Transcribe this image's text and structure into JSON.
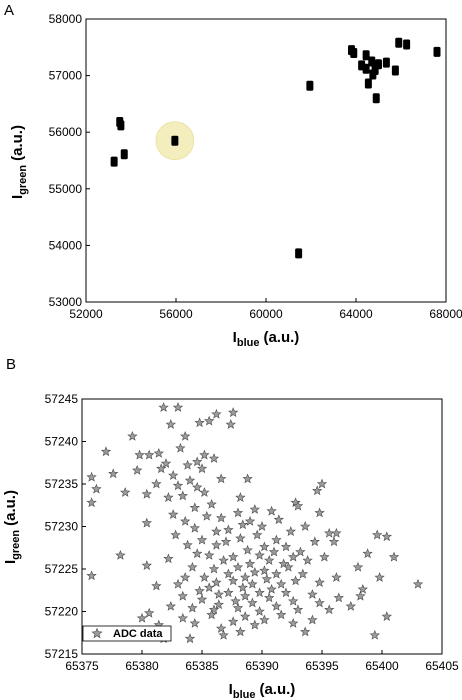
{
  "panels": {
    "a": {
      "label": "A"
    },
    "b": {
      "label": "B"
    }
  },
  "chart_data": [
    {
      "type": "scatter",
      "panel": "A",
      "xlabel_main": "I",
      "xlabel_sub": "blue",
      "xlabel_unit": "(a.u.)",
      "ylabel_main": "I",
      "ylabel_sub": "green",
      "ylabel_unit": "(a.u.)",
      "xlim": [
        52000,
        68000
      ],
      "ylim": [
        53000,
        58000
      ],
      "xticks": [
        "52000",
        "56000",
        "60000",
        "64000",
        "68000"
      ],
      "yticks": [
        "53000",
        "54000",
        "55000",
        "56000",
        "57000",
        "58000"
      ],
      "highlight_color": "#f4eebf",
      "marker_color": "#000000",
      "highlight_point": {
        "x": 55950,
        "y": 55850
      },
      "points": [
        {
          "x": 53250,
          "y": 55480
        },
        {
          "x": 53500,
          "y": 56180
        },
        {
          "x": 53550,
          "y": 56120
        },
        {
          "x": 53700,
          "y": 55610
        },
        {
          "x": 55950,
          "y": 55850
        },
        {
          "x": 61450,
          "y": 53860
        },
        {
          "x": 61950,
          "y": 56820
        },
        {
          "x": 63800,
          "y": 57450
        },
        {
          "x": 63900,
          "y": 57400
        },
        {
          "x": 64250,
          "y": 57180
        },
        {
          "x": 64450,
          "y": 57360
        },
        {
          "x": 64450,
          "y": 57120
        },
        {
          "x": 64550,
          "y": 56860
        },
        {
          "x": 64700,
          "y": 57250
        },
        {
          "x": 64750,
          "y": 57020
        },
        {
          "x": 64850,
          "y": 57100
        },
        {
          "x": 64900,
          "y": 56600
        },
        {
          "x": 65000,
          "y": 57200
        },
        {
          "x": 65350,
          "y": 57230
        },
        {
          "x": 65750,
          "y": 57090
        },
        {
          "x": 65900,
          "y": 57580
        },
        {
          "x": 66250,
          "y": 57550
        },
        {
          "x": 67600,
          "y": 57420
        }
      ]
    },
    {
      "type": "scatter",
      "panel": "B",
      "xlabel_main": "I",
      "xlabel_sub": "blue",
      "xlabel_unit": "(a.u.)",
      "ylabel_main": "I",
      "ylabel_sub": "green",
      "ylabel_unit": "(a.u.)",
      "xlim": [
        65375,
        65405
      ],
      "ylim": [
        57215,
        57245
      ],
      "xticks": [
        "65375",
        "65380",
        "65385",
        "65390",
        "65395",
        "65400",
        "65405"
      ],
      "yticks": [
        "57215",
        "57220",
        "57225",
        "57230",
        "57235",
        "57240",
        "57245"
      ],
      "marker": "star",
      "marker_color": "#9c9c9c",
      "legend": [
        "ADC data"
      ],
      "legend_position": "bottom-left",
      "points": [
        [
          65381.8,
          57244.0
        ],
        [
          65383.0,
          57244.0
        ],
        [
          65387.6,
          57243.4
        ],
        [
          65386.2,
          57243.2
        ],
        [
          65385.6,
          57242.4
        ],
        [
          65384.8,
          57242.2
        ],
        [
          65387.4,
          57242.0
        ],
        [
          65382.4,
          57242.0
        ],
        [
          65379.2,
          57240.6
        ],
        [
          65383.6,
          57240.6
        ],
        [
          65383.2,
          57239.2
        ],
        [
          65377.0,
          57238.8
        ],
        [
          65381.4,
          57238.6
        ],
        [
          65380.6,
          57238.4
        ],
        [
          65379.8,
          57238.4
        ],
        [
          65385.2,
          57238.4
        ],
        [
          65386.0,
          57238.0
        ],
        [
          65384.6,
          57237.6
        ],
        [
          65382.0,
          57237.4
        ],
        [
          65383.8,
          57237.2
        ],
        [
          65381.6,
          57236.8
        ],
        [
          65385.0,
          57236.8
        ],
        [
          65379.6,
          57236.6
        ],
        [
          65377.6,
          57236.2
        ],
        [
          65382.6,
          57236.0
        ],
        [
          65375.8,
          57235.8
        ],
        [
          65386.6,
          57235.6
        ],
        [
          65384.0,
          57235.4
        ],
        [
          65388.8,
          57235.6
        ],
        [
          65395.0,
          57235.0
        ],
        [
          65381.2,
          57235.0
        ],
        [
          65383.0,
          57234.8
        ],
        [
          65384.6,
          57234.6
        ],
        [
          65376.2,
          57234.4
        ],
        [
          65394.6,
          57234.2
        ],
        [
          65378.6,
          57234.0
        ],
        [
          65385.2,
          57234.0
        ],
        [
          65380.4,
          57233.8
        ],
        [
          65383.4,
          57233.6
        ],
        [
          65382.2,
          57233.4
        ],
        [
          65375.8,
          57232.8
        ],
        [
          65388.2,
          57233.4
        ],
        [
          65392.8,
          57232.8
        ],
        [
          65393.0,
          57232.4
        ],
        [
          65385.8,
          57232.6
        ],
        [
          65384.4,
          57232.2
        ],
        [
          65389.4,
          57232.0
        ],
        [
          65390.8,
          57231.8
        ],
        [
          65388.0,
          57231.6
        ],
        [
          65382.6,
          57231.4
        ],
        [
          65385.4,
          57231.2
        ],
        [
          65394.8,
          57231.6
        ],
        [
          65386.6,
          57231.0
        ],
        [
          65391.4,
          57230.8
        ],
        [
          65383.6,
          57230.6
        ],
        [
          65389.0,
          57230.6
        ],
        [
          65388.4,
          57230.2
        ],
        [
          65380.4,
          57230.4
        ],
        [
          65390.0,
          57230.0
        ],
        [
          65393.6,
          57230.0
        ],
        [
          65384.4,
          57229.8
        ],
        [
          65387.2,
          57229.6
        ],
        [
          65386.2,
          57229.4
        ],
        [
          65392.4,
          57229.4
        ],
        [
          65395.6,
          57229.2
        ],
        [
          65396.2,
          57229.2
        ],
        [
          65382.8,
          57229.0
        ],
        [
          65389.6,
          57229.0
        ],
        [
          65399.6,
          57229.0
        ],
        [
          65400.4,
          57228.8
        ],
        [
          65388.2,
          57228.6
        ],
        [
          65385.0,
          57228.4
        ],
        [
          65391.2,
          57228.4
        ],
        [
          65387.0,
          57228.2
        ],
        [
          65394.4,
          57228.2
        ],
        [
          65383.8,
          57227.8
        ],
        [
          65386.2,
          57227.8
        ],
        [
          65390.2,
          57227.6
        ],
        [
          65392.0,
          57227.6
        ],
        [
          65388.8,
          57227.2
        ],
        [
          65393.2,
          57227.0
        ],
        [
          65391.0,
          57227.0
        ],
        [
          65384.6,
          57226.8
        ],
        [
          65389.8,
          57226.6
        ],
        [
          65385.6,
          57226.6
        ],
        [
          65378.2,
          57226.6
        ],
        [
          65387.6,
          57226.4
        ],
        [
          65392.6,
          57226.4
        ],
        [
          65395.2,
          57226.4
        ],
        [
          65401.0,
          57226.4
        ],
        [
          65386.8,
          57226.0
        ],
        [
          65390.6,
          57226.0
        ],
        [
          65382.2,
          57226.2
        ],
        [
          65393.8,
          57226.0
        ],
        [
          65389.0,
          57225.6
        ],
        [
          65391.8,
          57225.6
        ],
        [
          65388.0,
          57225.2
        ],
        [
          65392.2,
          57225.2
        ],
        [
          65384.2,
          57225.2
        ],
        [
          65386.0,
          57225.0
        ],
        [
          65390.2,
          57224.8
        ],
        [
          65380.4,
          57225.4
        ],
        [
          65398.0,
          57225.2
        ],
        [
          65389.4,
          57224.6
        ],
        [
          65387.2,
          57224.4
        ],
        [
          65391.2,
          57224.4
        ],
        [
          65393.4,
          57224.4
        ],
        [
          65375.8,
          57224.2
        ],
        [
          65383.6,
          57224.0
        ],
        [
          65385.2,
          57224.0
        ],
        [
          65388.6,
          57224.0
        ],
        [
          65396.2,
          57224.0
        ],
        [
          65399.8,
          57224.0
        ],
        [
          65390.4,
          57223.8
        ],
        [
          65387.6,
          57223.6
        ],
        [
          65392.8,
          57223.6
        ],
        [
          65386.2,
          57223.4
        ],
        [
          65383.0,
          57223.2
        ],
        [
          65389.2,
          57223.2
        ],
        [
          65391.6,
          57223.2
        ],
        [
          65403.0,
          57223.2
        ],
        [
          65394.8,
          57223.4
        ],
        [
          65388.4,
          57222.8
        ],
        [
          65381.2,
          57223.0
        ],
        [
          65385.6,
          57222.8
        ],
        [
          65390.8,
          57222.6
        ],
        [
          65398.4,
          57222.6
        ],
        [
          65384.8,
          57222.4
        ],
        [
          65387.2,
          57222.2
        ],
        [
          65389.8,
          57222.2
        ],
        [
          65392.0,
          57222.2
        ],
        [
          65386.4,
          57222.0
        ],
        [
          65394.2,
          57222.0
        ],
        [
          65388.6,
          57221.8
        ],
        [
          65383.4,
          57221.8
        ],
        [
          65398.2,
          57221.8
        ],
        [
          65390.6,
          57221.6
        ],
        [
          65396.4,
          57221.6
        ],
        [
          65385.0,
          57221.4
        ],
        [
          65387.8,
          57221.2
        ],
        [
          65392.6,
          57221.2
        ],
        [
          65389.2,
          57221.0
        ],
        [
          65394.8,
          57221.0
        ],
        [
          65386.4,
          57220.8
        ],
        [
          65391.2,
          57220.6
        ],
        [
          65397.4,
          57220.6
        ],
        [
          65388.0,
          57220.4
        ],
        [
          65384.2,
          57220.4
        ],
        [
          65393.0,
          57220.2
        ],
        [
          65386.0,
          57220.2
        ],
        [
          65389.8,
          57220.0
        ],
        [
          65395.6,
          57220.2
        ],
        [
          65380.6,
          57219.8
        ],
        [
          65385.8,
          57219.6
        ],
        [
          65391.6,
          57219.6
        ],
        [
          65388.6,
          57219.4
        ],
        [
          65400.4,
          57219.4
        ],
        [
          65383.4,
          57219.2
        ],
        [
          65390.2,
          57219.0
        ],
        [
          65394.2,
          57219.0
        ],
        [
          65387.6,
          57218.8
        ],
        [
          65384.4,
          57218.6
        ],
        [
          65392.6,
          57218.6
        ],
        [
          65381.4,
          57218.4
        ],
        [
          65389.4,
          57218.4
        ],
        [
          65386.6,
          57218.0
        ],
        [
          65388.2,
          57217.6
        ],
        [
          65393.6,
          57217.6
        ],
        [
          65381.8,
          57216.8
        ],
        [
          65384.0,
          57216.8
        ],
        [
          65386.8,
          57217.2
        ],
        [
          65399.4,
          57217.2
        ],
        [
          65380.0,
          57219.2
        ],
        [
          65382.4,
          57220.6
        ],
        [
          65396.0,
          57228.2
        ],
        [
          65398.8,
          57226.8
        ]
      ]
    }
  ]
}
